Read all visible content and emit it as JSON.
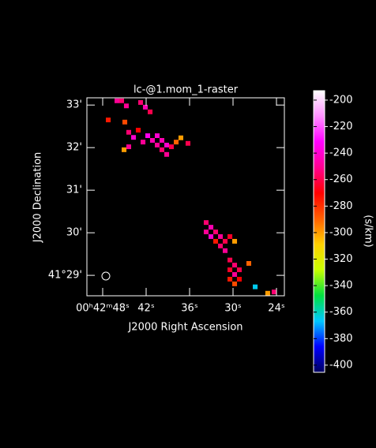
{
  "chart_data": {
    "type": "raster",
    "title": "lc-@1.mom_1-raster",
    "x_label": "J2000 Right Ascension",
    "y_label": "J2000 Declination",
    "colorbar_label": "(s/km)",
    "xlim": [
      50.18,
      22.91
    ],
    "ylim": [
      28.52,
      33.17
    ],
    "xticks": [
      {
        "value": 48,
        "label": "00ʰ42ᵐ48ˢ"
      },
      {
        "value": 42,
        "label": "42ˢ"
      },
      {
        "value": 36,
        "label": "36ˢ"
      },
      {
        "value": 30,
        "label": "30ˢ"
      },
      {
        "value": 24,
        "label": "24ˢ"
      }
    ],
    "yticks": [
      {
        "value": 33,
        "label": "33'"
      },
      {
        "value": 32,
        "label": "32'"
      },
      {
        "value": 31,
        "label": "31'"
      },
      {
        "value": 30,
        "label": "30'"
      },
      {
        "value": 29,
        "label": "41°29'"
      }
    ],
    "clim": [
      -405.4,
      -192.9
    ],
    "cticks": [
      -400,
      -380,
      -360,
      -340,
      -320,
      -300,
      -280,
      -260,
      -240,
      -220,
      -200
    ],
    "colormap": [
      "#000060",
      "#0000ff",
      "#00c8ff",
      "#00e040",
      "#c8ff00",
      "#ffd000",
      "#ff6000",
      "#ff0000",
      "#ff0090",
      "#ff00ff",
      "#ff90ff",
      "#ffffff"
    ],
    "pixels": {
      "x": [
        46.03,
        45.38,
        44.73,
        47.23,
        44.94,
        42.76,
        42.11,
        41.45,
        44.4,
        43.74,
        43.09,
        42.43,
        41.78,
        41.13,
        40.47,
        39.82,
        39.16,
        38.51,
        37.85,
        37.2,
        36.22,
        45.05,
        44.4,
        40.47,
        39.82,
        39.16,
        33.71,
        33.05,
        33.71,
        32.4,
        31.74,
        33.05,
        31.09,
        30.43,
        32.4,
        29.78,
        31.74,
        31.09,
        30.43,
        29.78,
        30.43,
        29.13,
        29.78,
        30.43,
        29.13,
        27.82,
        29.78,
        26.94,
        24.33,
        25.21
      ],
      "y": [
        33.1,
        33.1,
        32.98,
        32.65,
        32.6,
        33.06,
        32.95,
        32.84,
        32.36,
        32.24,
        32.41,
        32.13,
        32.28,
        32.17,
        32.06,
        31.95,
        31.84,
        32.02,
        32.13,
        32.23,
        32.1,
        31.95,
        32.02,
        32.28,
        32.17,
        32.06,
        30.24,
        30.13,
        30.02,
        30.02,
        29.91,
        29.91,
        29.8,
        29.91,
        29.8,
        29.8,
        29.69,
        29.58,
        29.36,
        29.24,
        29.13,
        29.13,
        29.02,
        28.91,
        28.91,
        29.28,
        28.8,
        28.73,
        28.61,
        28.58
      ],
      "values": [
        -250,
        -255,
        -250,
        -275,
        -285,
        -255,
        -245,
        -260,
        -255,
        -240,
        -270,
        -250,
        -235,
        -245,
        -250,
        -255,
        -250,
        -260,
        -290,
        -300,
        -260,
        -300,
        -250,
        -240,
        -245,
        -240,
        -255,
        -245,
        -250,
        -255,
        -250,
        -240,
        -260,
        -265,
        -275,
        -300,
        -255,
        -250,
        -260,
        -255,
        -265,
        -260,
        -250,
        -275,
        -270,
        -290,
        -285,
        -365,
        -255,
        -300
      ]
    }
  }
}
